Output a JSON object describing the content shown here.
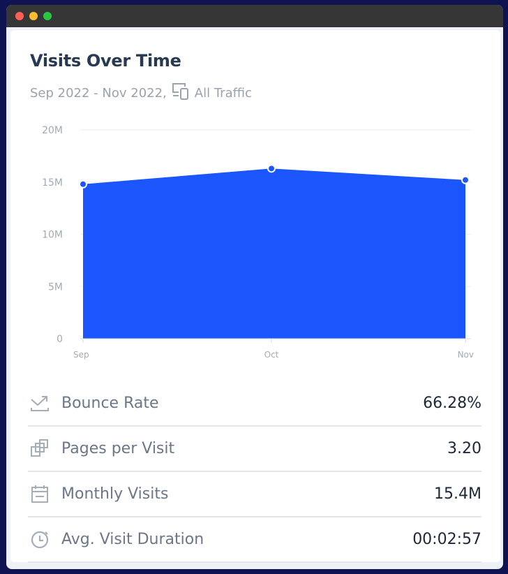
{
  "window": {
    "traffic_lights": {
      "close": "#fe5f57",
      "minimize": "#febc2e",
      "maximize": "#28c840"
    }
  },
  "header": {
    "title": "Visits Over Time",
    "date_range": "Sep 2022 - Nov 2022,",
    "device_icon": "devices-icon",
    "traffic": "All Traffic"
  },
  "chart_data": {
    "type": "area",
    "categories": [
      "Sep",
      "Oct",
      "Nov"
    ],
    "values": [
      14800000,
      16300000,
      15200000
    ],
    "ylim": [
      0,
      20000000
    ],
    "yticks": [
      {
        "value": 0,
        "label": "0"
      },
      {
        "value": 5000000,
        "label": "5M"
      },
      {
        "value": 10000000,
        "label": "10M"
      },
      {
        "value": 15000000,
        "label": "15M"
      },
      {
        "value": 20000000,
        "label": "20M"
      }
    ],
    "grid": true,
    "color": "#1a56fb"
  },
  "metrics": [
    {
      "icon": "bounce-trend-icon",
      "label": "Bounce Rate",
      "value": "66.28%"
    },
    {
      "icon": "pages-icon",
      "label": "Pages per Visit",
      "value": "3.20"
    },
    {
      "icon": "calendar-icon",
      "label": "Monthly Visits",
      "value": "15.4M"
    },
    {
      "icon": "stopwatch-icon",
      "label": "Avg. Visit Duration",
      "value": "00:02:57"
    }
  ]
}
